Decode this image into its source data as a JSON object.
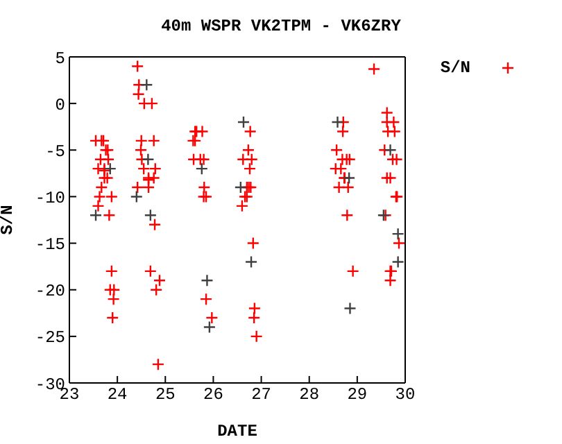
{
  "chart_data": {
    "type": "scatter",
    "title": "40m WSPR VK2TPM - VK6ZRY",
    "xlabel": "DATE",
    "ylabel": "S/N",
    "xlim": [
      23,
      30
    ],
    "xticks": [
      23,
      24,
      25,
      26,
      27,
      28,
      29,
      30
    ],
    "ylim": [
      -30,
      5
    ],
    "yticks": [
      -30,
      -25,
      -20,
      -15,
      -10,
      -5,
      0,
      5
    ],
    "legend": "top right",
    "marker": "cross",
    "series": [
      {
        "name": "S/N",
        "color": "#ff0000",
        "x": [
          23.55,
          23.67,
          23.71,
          23.76,
          23.8,
          23.65,
          23.81,
          23.6,
          23.73,
          23.73,
          23.73,
          23.79,
          23.67,
          23.63,
          23.88,
          23.6,
          23.83,
          23.88,
          23.85,
          23.93,
          23.92,
          23.9,
          24.42,
          24.45,
          24.44,
          24.56,
          24.72,
          24.5,
          24.76,
          24.49,
          24.51,
          24.55,
          24.79,
          24.65,
          24.65,
          24.76,
          24.42,
          24.65,
          24.78,
          24.69,
          24.88,
          24.81,
          24.85,
          25.62,
          25.65,
          25.77,
          25.58,
          25.62,
          25.59,
          25.73,
          25.8,
          25.81,
          25.8,
          25.85,
          25.85,
          25.97,
          26.77,
          26.73,
          26.62,
          26.8,
          26.76,
          26.7,
          26.74,
          26.78,
          26.66,
          26.7,
          26.6,
          26.83,
          26.86,
          26.85,
          26.9,
          29.35,
          28.71,
          28.7,
          28.57,
          28.69,
          28.78,
          28.84,
          28.55,
          28.66,
          28.74,
          28.73,
          28.62,
          28.81,
          28.79,
          28.91,
          29.62,
          29.62,
          29.76,
          29.64,
          29.78,
          29.57,
          29.74,
          29.82,
          29.62,
          29.69,
          29.81,
          29.83,
          29.59,
          29.87,
          29.69,
          29.71,
          29.69
        ],
        "values": [
          -4,
          -4,
          -4,
          -5,
          -5,
          -6,
          -6,
          -7,
          -7,
          -7.2,
          -8,
          -8,
          -9,
          -10,
          -10,
          -11,
          -12,
          -18,
          -20,
          -20,
          -21,
          -23,
          4,
          2,
          1,
          0,
          0,
          -4,
          -4,
          -5,
          -6,
          -7,
          -7,
          -8,
          -8.2,
          -8,
          -9,
          -9,
          -13,
          -18,
          -19,
          -20,
          -28,
          -3,
          -3,
          -3,
          -4,
          -4,
          -6,
          -6,
          -6,
          -9,
          -10,
          -10,
          -21,
          -23,
          -3,
          -5,
          -6,
          -6,
          -7,
          -9,
          -9,
          -9,
          -10,
          -10,
          -11,
          -15,
          -22,
          -23,
          -25,
          3.7,
          -2,
          -3,
          -5,
          -6,
          -6,
          -6,
          -7,
          -7,
          -8,
          -8,
          -9,
          -9,
          -12,
          -18,
          -1,
          -2,
          -2,
          -3,
          -3,
          -5,
          -6,
          -6,
          -8,
          -8,
          -10,
          -10,
          -12,
          -15,
          -18,
          -18,
          -19
        ]
      },
      {
        "color": "#404040",
        "x": [
          23.55,
          23.85,
          24.61,
          24.4,
          24.69,
          24.64,
          25.87,
          25.92,
          25.76,
          26.63,
          26.57,
          26.79,
          28.59,
          28.85,
          28.83,
          29.69,
          29.55,
          29.85,
          29.85
        ],
        "values": [
          -12,
          -7,
          2,
          -10,
          -12,
          -6,
          -19,
          -24,
          -7,
          -2,
          -9,
          -17,
          -2,
          -22,
          -8,
          -5,
          -12,
          -14,
          -17
        ]
      }
    ]
  }
}
